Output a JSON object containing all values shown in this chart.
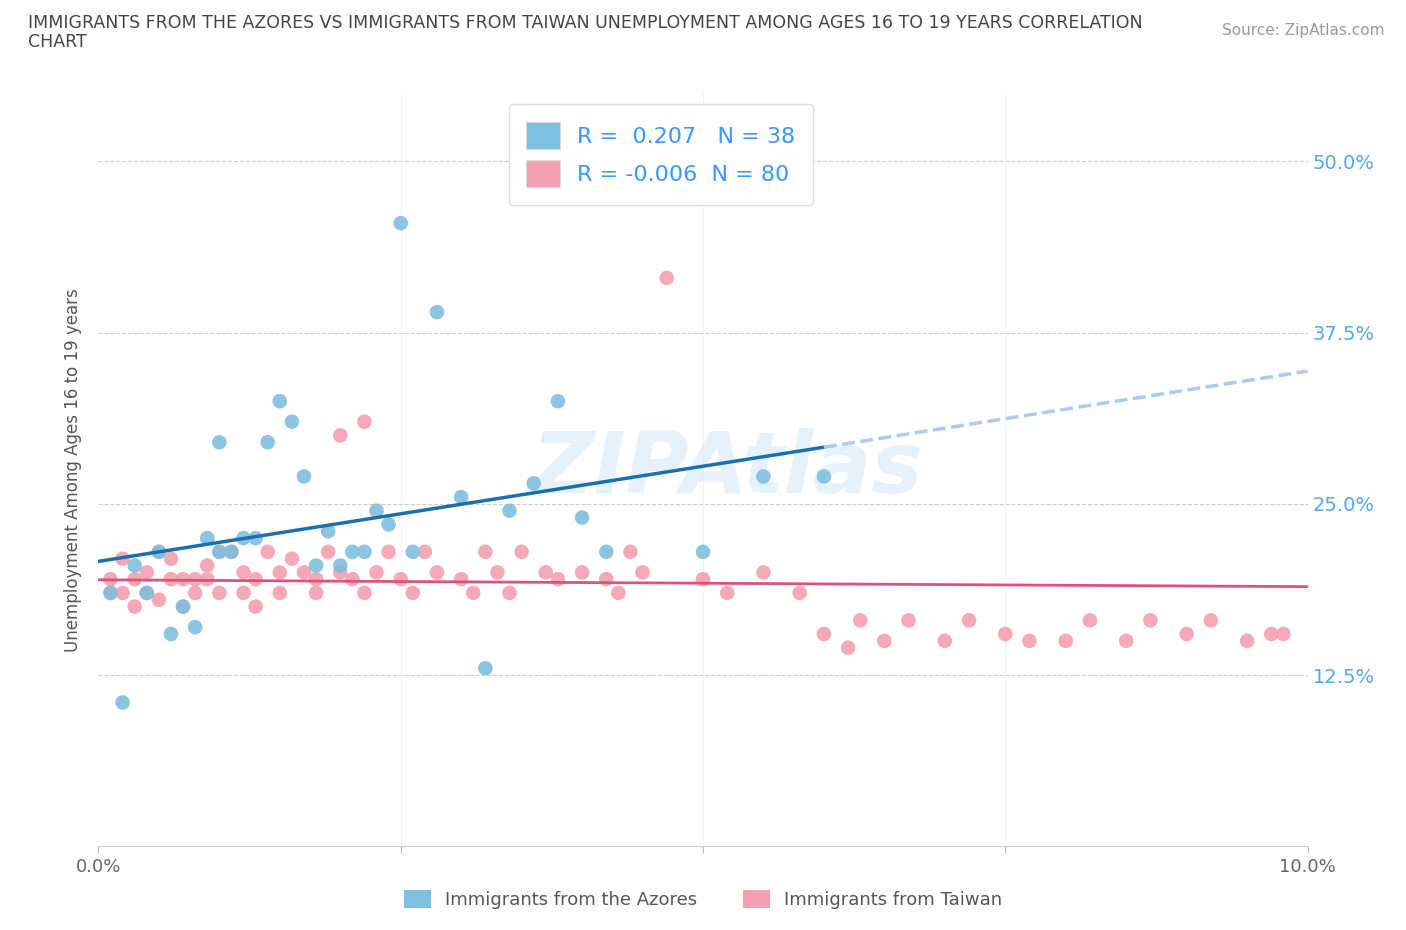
{
  "title_line1": "IMMIGRANTS FROM THE AZORES VS IMMIGRANTS FROM TAIWAN UNEMPLOYMENT AMONG AGES 16 TO 19 YEARS CORRELATION",
  "title_line2": "CHART",
  "source_text": "Source: ZipAtlas.com",
  "ylabel": "Unemployment Among Ages 16 to 19 years",
  "xlim": [
    0.0,
    0.1
  ],
  "ylim": [
    0.0,
    0.55
  ],
  "ytick_vals": [
    0.0,
    0.125,
    0.25,
    0.375,
    0.5
  ],
  "ytick_labels": [
    "",
    "12.5%",
    "25.0%",
    "37.5%",
    "50.0%"
  ],
  "xtick_vals": [
    0.0,
    0.025,
    0.05,
    0.075,
    0.1
  ],
  "xtick_labels": [
    "0.0%",
    "",
    "",
    "",
    "10.0%"
  ],
  "azores_color": "#7fbfdf",
  "taiwan_color": "#f4a0b0",
  "azores_line_color": "#1a6faf",
  "azores_dash_color": "#aaccee",
  "taiwan_line_color": "#e0507a",
  "azores_R": 0.207,
  "azores_N": 38,
  "taiwan_R": -0.006,
  "taiwan_N": 80,
  "legend_label_azores": "Immigrants from the Azores",
  "legend_label_taiwan": "Immigrants from Taiwan",
  "watermark": "ZIPAtlas",
  "azores_x": [
    0.001,
    0.002,
    0.003,
    0.004,
    0.005,
    0.006,
    0.007,
    0.008,
    0.009,
    0.01,
    0.01,
    0.011,
    0.012,
    0.013,
    0.014,
    0.015,
    0.016,
    0.017,
    0.018,
    0.019,
    0.02,
    0.021,
    0.022,
    0.023,
    0.024,
    0.025,
    0.026,
    0.028,
    0.03,
    0.032,
    0.034,
    0.036,
    0.038,
    0.04,
    0.042,
    0.05,
    0.055,
    0.06
  ],
  "azores_y": [
    0.185,
    0.105,
    0.205,
    0.185,
    0.215,
    0.155,
    0.175,
    0.16,
    0.225,
    0.295,
    0.215,
    0.215,
    0.225,
    0.225,
    0.295,
    0.325,
    0.31,
    0.27,
    0.205,
    0.23,
    0.205,
    0.215,
    0.215,
    0.245,
    0.235,
    0.455,
    0.215,
    0.39,
    0.255,
    0.13,
    0.245,
    0.265,
    0.325,
    0.24,
    0.215,
    0.215,
    0.27,
    0.27
  ],
  "taiwan_x": [
    0.001,
    0.001,
    0.002,
    0.002,
    0.003,
    0.003,
    0.004,
    0.004,
    0.005,
    0.005,
    0.006,
    0.006,
    0.007,
    0.007,
    0.008,
    0.008,
    0.009,
    0.009,
    0.01,
    0.01,
    0.011,
    0.012,
    0.012,
    0.013,
    0.013,
    0.014,
    0.015,
    0.015,
    0.016,
    0.017,
    0.018,
    0.018,
    0.019,
    0.02,
    0.02,
    0.021,
    0.022,
    0.022,
    0.023,
    0.024,
    0.025,
    0.026,
    0.027,
    0.028,
    0.03,
    0.031,
    0.032,
    0.033,
    0.034,
    0.035,
    0.037,
    0.038,
    0.04,
    0.042,
    0.043,
    0.044,
    0.045,
    0.047,
    0.05,
    0.052,
    0.055,
    0.058,
    0.06,
    0.062,
    0.063,
    0.065,
    0.067,
    0.07,
    0.072,
    0.075,
    0.077,
    0.08,
    0.082,
    0.085,
    0.087,
    0.09,
    0.092,
    0.095,
    0.097,
    0.098
  ],
  "taiwan_y": [
    0.195,
    0.185,
    0.21,
    0.185,
    0.195,
    0.175,
    0.2,
    0.185,
    0.215,
    0.18,
    0.195,
    0.21,
    0.195,
    0.175,
    0.195,
    0.185,
    0.205,
    0.195,
    0.185,
    0.215,
    0.215,
    0.2,
    0.185,
    0.195,
    0.175,
    0.215,
    0.2,
    0.185,
    0.21,
    0.2,
    0.195,
    0.185,
    0.215,
    0.2,
    0.3,
    0.195,
    0.31,
    0.185,
    0.2,
    0.215,
    0.195,
    0.185,
    0.215,
    0.2,
    0.195,
    0.185,
    0.215,
    0.2,
    0.185,
    0.215,
    0.2,
    0.195,
    0.2,
    0.195,
    0.185,
    0.215,
    0.2,
    0.415,
    0.195,
    0.185,
    0.2,
    0.185,
    0.155,
    0.145,
    0.165,
    0.15,
    0.165,
    0.15,
    0.165,
    0.155,
    0.15,
    0.15,
    0.165,
    0.15,
    0.165,
    0.155,
    0.165,
    0.15,
    0.155,
    0.155
  ]
}
